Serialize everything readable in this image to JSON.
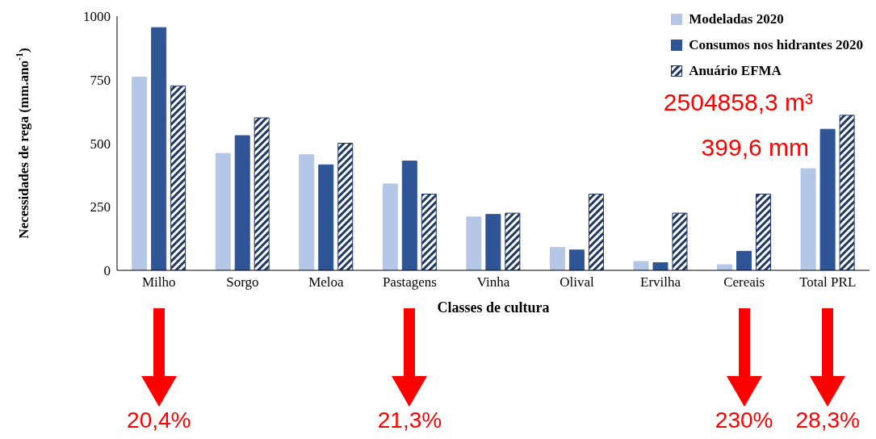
{
  "chart_data": {
    "type": "bar",
    "xlabel": "Classes de cultura",
    "ylabel": "Necessidades de rega (mm.ano$^{-1}$)",
    "categories": [
      "Milho",
      "Sorgo",
      "Meloa",
      "Pastagens",
      "Vinha",
      "Olival",
      "Ervilha",
      "Cereais",
      "Total PRL"
    ],
    "series": [
      {
        "name": "Modeladas 2020",
        "color": "#b4c7e7",
        "values": [
          760,
          460,
          455,
          340,
          210,
          90,
          35,
          22,
          400
        ]
      },
      {
        "name": "Consumos nos hidrantes 2020",
        "color": "#2f5597",
        "values": [
          955,
          530,
          415,
          430,
          220,
          80,
          30,
          75,
          555
        ]
      },
      {
        "name": "Anuário EFMA",
        "color": "#1f3864",
        "values": [
          725,
          600,
          500,
          300,
          225,
          300,
          225,
          300,
          610
        ]
      }
    ],
    "ylim": [
      0,
      1000
    ],
    "yticks": [
      0,
      250,
      500,
      750,
      1000
    ],
    "grid": false,
    "legend": "top right",
    "annotations": [
      "2504858,3 m³",
      "399,6 mm",
      "20,4%",
      "21,3%",
      "230%",
      "28,3%"
    ]
  }
}
